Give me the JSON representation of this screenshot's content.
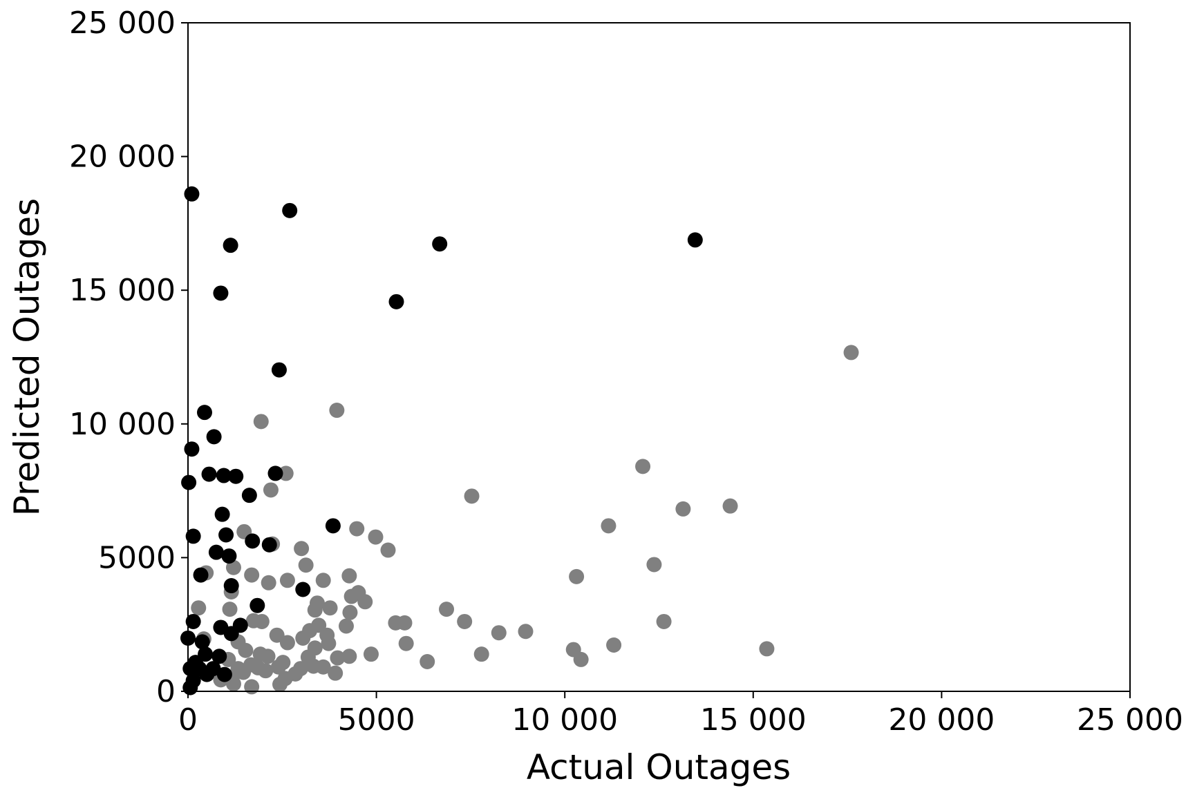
{
  "chart_data": {
    "type": "scatter",
    "x_label": "Actual Outages",
    "y_label": "Predicted Outages",
    "xlim": [
      0,
      25000
    ],
    "ylim": [
      0,
      25000
    ],
    "xticks": [
      0,
      5000,
      {
        "value": 10000,
        "label": "10 000"
      },
      {
        "value": 15000,
        "label": "15 000"
      },
      {
        "value": 20000,
        "label": "20 000"
      },
      {
        "value": 25000,
        "label": "25 000"
      }
    ],
    "yticks": [
      0,
      5000,
      {
        "value": 10000,
        "label": "10 000"
      },
      {
        "value": 15000,
        "label": "15 000"
      },
      {
        "value": 20000,
        "label": "20 000"
      },
      {
        "value": 25000,
        "label": "25 000"
      }
    ],
    "grid": false,
    "series": [
      {
        "color": "#808080",
        "x": [
          17600,
          3950,
          1940,
          12070,
          2600,
          2200,
          7530,
          14390,
          13140,
          11160,
          4480,
          4980,
          1490,
          5310,
          3010,
          2240,
          12370,
          3130,
          1210,
          480,
          1690,
          4280,
          10310,
          2640,
          3590,
          2140,
          1150,
          4340,
          4520,
          4700,
          3430,
          3770,
          280,
          1110,
          6860,
          4300,
          3370,
          1740,
          1960,
          7340,
          12630,
          5510,
          5750,
          4200,
          8960,
          8250,
          3470,
          3230,
          2360,
          3690,
          3050,
          420,
          1330,
          2640,
          5790,
          11300,
          15360,
          10230,
          3370,
          3730,
          1530,
          1920,
          2120,
          4860,
          4280,
          3970,
          7790,
          3190,
          10430,
          6350,
          2520,
          1070,
          1670,
          2400,
          2990,
          3330,
          3590,
          3910,
          2060,
          2850,
          1470,
          1170,
          2580,
          2440,
          1690,
          1210,
          870,
          1330,
          1860
        ],
        "y": [
          12670,
          10510,
          10090,
          8410,
          8150,
          7530,
          7300,
          6930,
          6820,
          6190,
          6080,
          5770,
          5970,
          5280,
          5340,
          5510,
          4740,
          4720,
          4630,
          4430,
          4350,
          4320,
          4290,
          4150,
          4150,
          4060,
          3720,
          3550,
          3690,
          3350,
          3300,
          3120,
          3120,
          3070,
          3070,
          2950,
          3040,
          2640,
          2610,
          2610,
          2610,
          2560,
          2560,
          2440,
          2240,
          2190,
          2470,
          2270,
          2100,
          2100,
          1990,
          1960,
          1850,
          1820,
          1790,
          1730,
          1590,
          1560,
          1620,
          1790,
          1530,
          1390,
          1310,
          1390,
          1310,
          1250,
          1390,
          1280,
          1190,
          1110,
          1080,
          1190,
          990,
          910,
          850,
          940,
          910,
          680,
          770,
          650,
          710,
          540,
          480,
          260,
          170,
          280,
          430,
          850,
          880
        ]
      },
      {
        "color": "#000000",
        "x": [
          100,
          2700,
          1130,
          6680,
          13460,
          870,
          5530,
          2420,
          440,
          100,
          690,
          20,
          560,
          950,
          1270,
          2320,
          1630,
          3850,
          910,
          140,
          1010,
          1710,
          2160,
          750,
          1090,
          340,
          1150,
          3050,
          1840,
          870,
          1390,
          1150,
          140,
          380,
          0,
          830,
          460,
          200,
          970,
          500,
          140,
          60,
          300,
          60,
          670
        ],
        "y": [
          18600,
          17980,
          16680,
          16730,
          16880,
          14890,
          14570,
          12020,
          10430,
          9060,
          9520,
          7810,
          8120,
          8070,
          8040,
          8150,
          7330,
          6190,
          6620,
          5800,
          5850,
          5620,
          5480,
          5200,
          5060,
          4350,
          3950,
          3810,
          3210,
          2390,
          2470,
          2160,
          2610,
          1850,
          1990,
          1310,
          1390,
          1080,
          630,
          630,
          400,
          850,
          850,
          140,
          850
        ]
      }
    ]
  }
}
